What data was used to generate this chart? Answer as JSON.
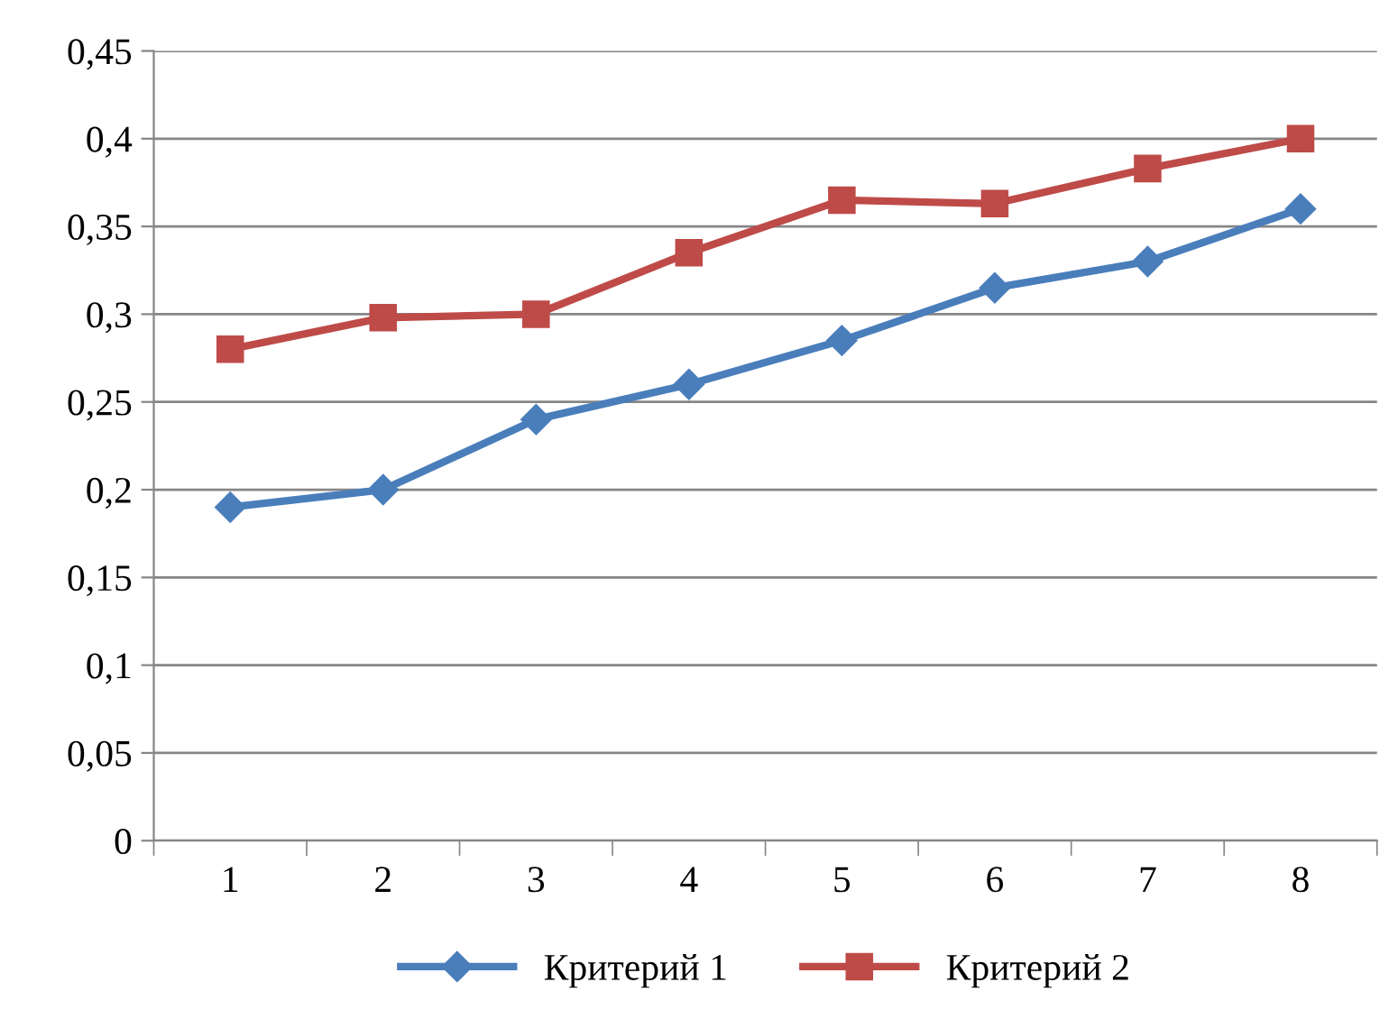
{
  "chart_data": {
    "type": "line",
    "categories": [
      "1",
      "2",
      "3",
      "4",
      "5",
      "6",
      "7",
      "8"
    ],
    "series": [
      {
        "name": "Критерий 1",
        "color": "#4a7ebb",
        "marker": "diamond",
        "values": [
          0.19,
          0.2,
          0.24,
          0.26,
          0.285,
          0.315,
          0.33,
          0.36
        ]
      },
      {
        "name": "Критерий 2",
        "color": "#be4b48",
        "marker": "square",
        "values": [
          0.28,
          0.298,
          0.3,
          0.335,
          0.365,
          0.363,
          0.383,
          0.4
        ]
      }
    ],
    "ylim": [
      0,
      0.45
    ],
    "yticks": [
      0,
      {
        "value": 0.05,
        "label": "0,05"
      },
      {
        "value": 0.1,
        "label": "0,1"
      },
      {
        "value": 0.15,
        "label": "0,15"
      },
      {
        "value": 0.2,
        "label": "0,2"
      },
      {
        "value": 0.25,
        "label": "0,25"
      },
      {
        "value": 0.3,
        "label": "0,3"
      },
      {
        "value": 0.35,
        "label": "0,35"
      },
      {
        "value": 0.4,
        "label": "0,4"
      },
      {
        "value": 0.45,
        "label": "0,45"
      }
    ],
    "grid": "y",
    "legend": "bottom",
    "line_style": "solid"
  }
}
